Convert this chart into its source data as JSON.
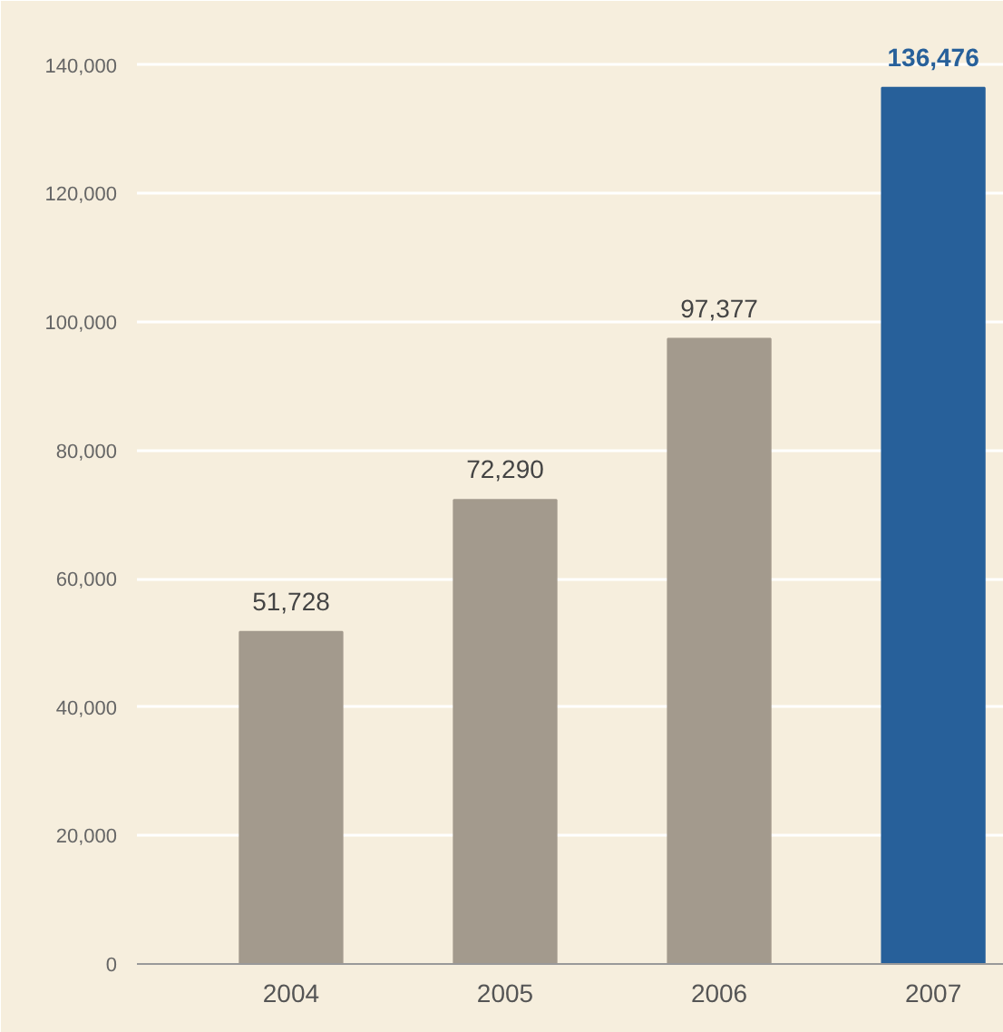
{
  "chart_data": {
    "type": "bar",
    "categories": [
      "2004",
      "2005",
      "2006",
      "2007"
    ],
    "values": [
      51728,
      72290,
      97377,
      136476
    ],
    "colors": [
      "#a39a8d",
      "#a39a8d",
      "#a39a8d",
      "#27609a"
    ],
    "ylim": [
      0,
      150000
    ],
    "yticks": [
      {
        "value": 0,
        "label": "0"
      },
      {
        "value": 20000,
        "label": "20,000"
      },
      {
        "value": 40000,
        "label": "40,000"
      },
      {
        "value": 60000,
        "label": "60,000"
      },
      {
        "value": 80000,
        "label": "80,000"
      },
      {
        "value": 100000,
        "label": "100,000"
      },
      {
        "value": 120000,
        "label": "120,000"
      },
      {
        "value": 140000,
        "label": "140,000"
      }
    ],
    "value_labels": [
      "51,728",
      "72,290",
      "97,377",
      "136,476"
    ],
    "grid": "y"
  }
}
